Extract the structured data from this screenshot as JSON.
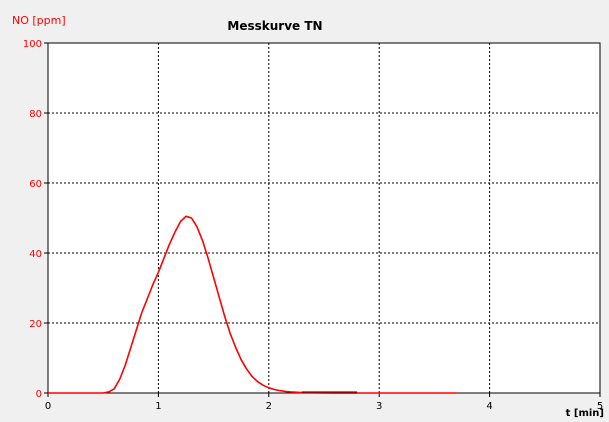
{
  "chart_data": {
    "type": "line",
    "title": "Messkurve TN",
    "ylabel": "NO [ppm]",
    "xlabel": "t [min]",
    "xlim": [
      0,
      5
    ],
    "ylim": [
      0,
      100
    ],
    "xticks": [
      0,
      1,
      2,
      3,
      4,
      5
    ],
    "yticks": [
      0,
      20,
      40,
      60,
      80,
      100
    ],
    "grid": true,
    "legend": "none",
    "colors": {
      "curve": "#ff0000",
      "curve_dark": "#a00000",
      "ylabel": "#ff0000",
      "yticks": "#ff0000",
      "xticks": "#000000",
      "grid": "#000000",
      "plot_bg": "#ffffff",
      "page_bg": "#f0f0f0"
    },
    "series": [
      {
        "x": [
          0,
          0.1,
          0.2,
          0.3,
          0.4,
          0.5,
          0.55,
          0.6,
          0.65,
          0.7,
          0.75,
          0.8,
          0.85,
          0.9,
          0.95,
          1.0,
          1.05,
          1.1,
          1.15,
          1.2,
          1.25,
          1.3,
          1.35,
          1.4,
          1.45,
          1.5,
          1.55,
          1.6,
          1.65,
          1.7,
          1.75,
          1.8,
          1.85,
          1.9,
          1.95,
          2.0,
          2.05,
          2.1,
          2.15,
          2.2,
          2.3,
          2.4,
          2.6,
          2.8,
          3.0,
          3.2,
          3.4,
          3.6,
          3.7
        ],
        "values": [
          0,
          0,
          0,
          0,
          0,
          0,
          0.3,
          1.2,
          4,
          8,
          13,
          18,
          23,
          27,
          31,
          34.5,
          38.5,
          42.5,
          46,
          49,
          50.5,
          50,
          47.5,
          43.5,
          38.5,
          33,
          27.5,
          22,
          17,
          13,
          9.5,
          6.8,
          4.7,
          3.2,
          2.2,
          1.5,
          1.0,
          0.7,
          0.45,
          0.3,
          0.15,
          0.08,
          0.03,
          0.01,
          0,
          0,
          0,
          0,
          0
        ]
      }
    ]
  }
}
